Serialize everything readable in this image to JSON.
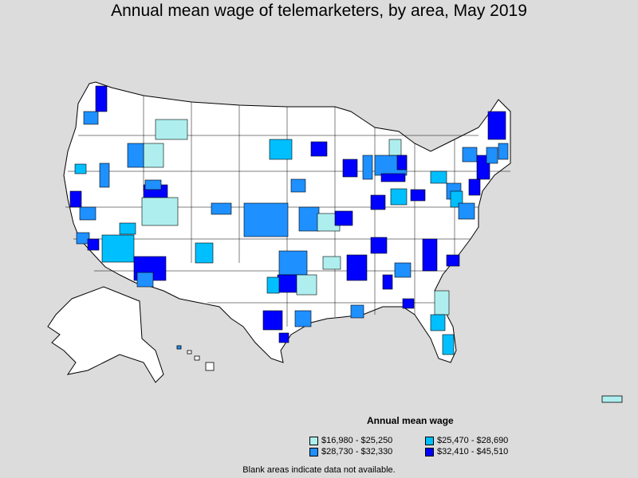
{
  "title": "Annual mean wage of telemarketers, by area, May 2019",
  "legend": {
    "title": "Annual mean wage",
    "items": [
      {
        "label": "$16,980 - $25,250",
        "color": "#aeeeee"
      },
      {
        "label": "$25,470 - $28,690",
        "color": "#00bfff"
      },
      {
        "label": "$28,730 - $32,330",
        "color": "#1e90ff"
      },
      {
        "label": "$32,410 - $45,510",
        "color": "#0000ff"
      }
    ]
  },
  "note": "Blank areas indicate data not available."
}
